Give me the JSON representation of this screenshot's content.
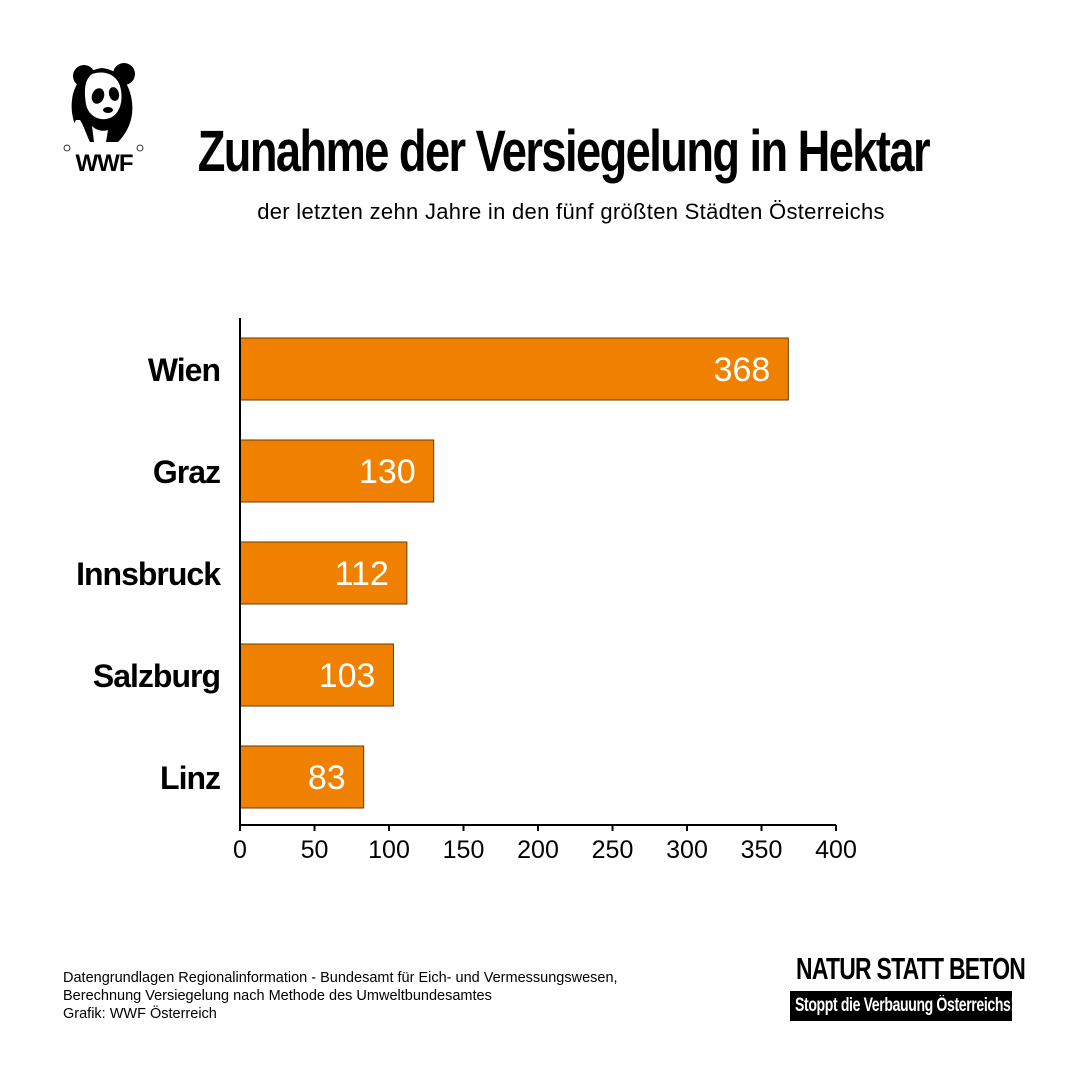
{
  "brand": {
    "logo_text": "WWF",
    "logo_icon": "panda-icon"
  },
  "header": {
    "title": "Zunahme der Versiegelung in Hektar",
    "subtitle": "der letzten zehn Jahre in den fünf größten Städten Österreichs"
  },
  "chart_data": {
    "type": "bar",
    "orientation": "horizontal",
    "categories": [
      "Wien",
      "Graz",
      "Innsbruck",
      "Salzburg",
      "Linz"
    ],
    "values": [
      368,
      130,
      112,
      103,
      83
    ],
    "xlim": [
      0,
      400
    ],
    "x_ticks": [
      0,
      50,
      100,
      150,
      200,
      250,
      300,
      350,
      400
    ],
    "bar_color": "#F08000",
    "value_label_color": "#FFFFFF",
    "grid": false,
    "legend": "none"
  },
  "footnote": {
    "lines": [
      "Datengrundlagen Regionalinformation - Bundesamt für Eich- und Vermessungswesen,",
      "Berechnung Versiegelung nach Methode des Umweltbundesamtes",
      "Grafik: WWF Österreich"
    ]
  },
  "slogan": {
    "main": "NATUR STATT BETON",
    "sub": "Stoppt die Verbauung Österreichs!"
  }
}
